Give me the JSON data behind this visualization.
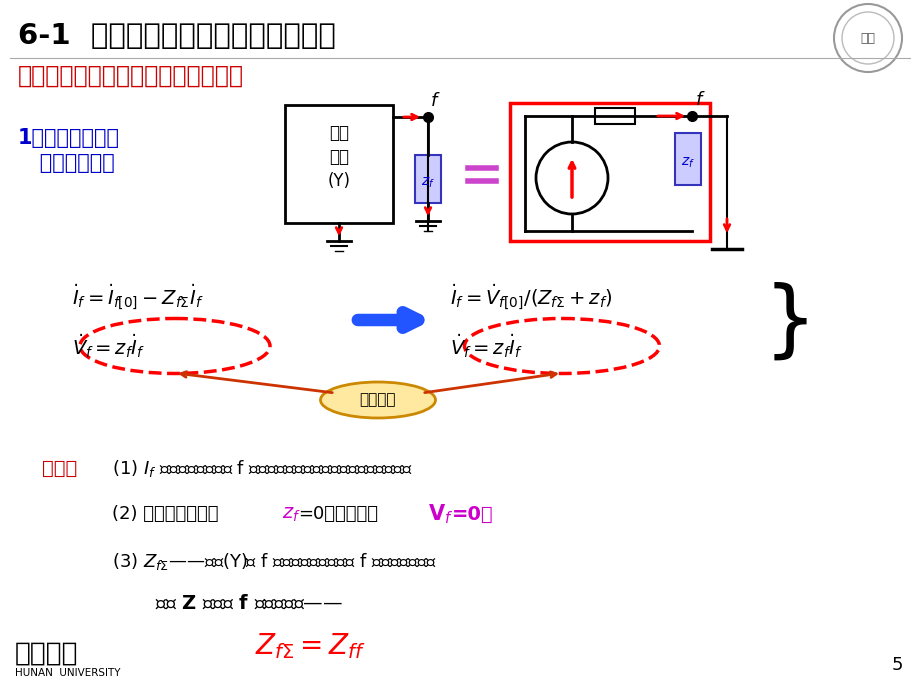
{
  "title1": "6-1  短路电流计算的基本原理与方法",
  "title2": "二、利用节点阻抗矩阵计算短路电流",
  "bg_color": "#ffffff",
  "title1_color": "#000000",
  "title2_color": "#cc0000",
  "subtitle_color": "#0000cc",
  "page_number": "5"
}
